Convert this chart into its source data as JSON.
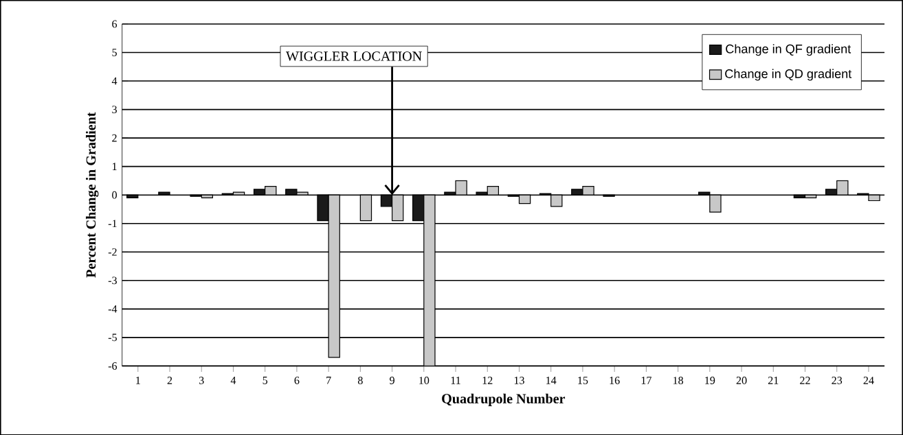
{
  "chart_data": {
    "type": "bar",
    "xlabel": "Quadrupole Number",
    "ylabel": "Percent Change in Gradient",
    "categories": [
      "1",
      "2",
      "3",
      "4",
      "5",
      "6",
      "7",
      "8",
      "9",
      "10",
      "11",
      "12",
      "13",
      "14",
      "15",
      "16",
      "17",
      "18",
      "19",
      "20",
      "21",
      "22",
      "23",
      "24"
    ],
    "series": [
      {
        "name": "Change in QF gradient",
        "color": "#1a1a1a",
        "values": [
          -0.1,
          0.1,
          -0.05,
          0.05,
          0.2,
          0.2,
          -0.9,
          0,
          -0.4,
          -0.9,
          0.1,
          0.1,
          -0.05,
          0.05,
          0.2,
          -0.05,
          0,
          0,
          0.1,
          0,
          0,
          -0.1,
          0.2,
          0.05
        ]
      },
      {
        "name": "Change in QD gradient",
        "color": "#c8c8c8",
        "values": [
          0,
          0,
          -0.1,
          0.1,
          0.3,
          0.1,
          -5.7,
          -0.9,
          -0.9,
          -6,
          0.5,
          0.3,
          -0.3,
          -0.4,
          0.3,
          0,
          0,
          0,
          -0.6,
          0,
          0,
          -0.1,
          0.5,
          -0.2
        ]
      }
    ],
    "annotations": [
      {
        "text": "WIGGLER LOCATION",
        "x": "9",
        "y": 0
      }
    ],
    "ylim": [
      -6,
      6
    ],
    "yticks": [
      -6,
      -5,
      -4,
      -3,
      -2,
      -1,
      0,
      1,
      2,
      3,
      4,
      5,
      6
    ],
    "grid": "y",
    "legend": "top right"
  }
}
